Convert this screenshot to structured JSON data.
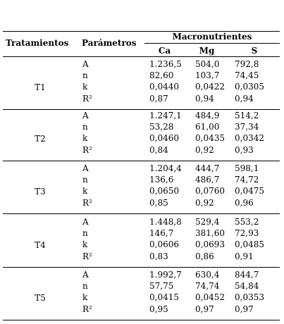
{
  "header": {
    "treatment": "Tratamientos",
    "parameter": "Parámetros",
    "group": "Macronutrientes",
    "subcolumns": [
      "Ca",
      "Mg",
      "S"
    ]
  },
  "groups": [
    {
      "treatment": "T1",
      "rows": [
        {
          "parameter": "A",
          "values": [
            "1.236,5",
            "504,0",
            "792,8"
          ]
        },
        {
          "parameter": "n",
          "values": [
            "82,60",
            "103,7",
            "74,45"
          ]
        },
        {
          "parameter": "k",
          "values": [
            "0,0440",
            "0,0422",
            "0,0305"
          ]
        },
        {
          "parameter": "R²",
          "values": [
            "0,87",
            "0,94",
            "0,94"
          ]
        }
      ]
    },
    {
      "treatment": "T2",
      "rows": [
        {
          "parameter": "A",
          "values": [
            "1.247,1",
            "484,9",
            "514,2"
          ]
        },
        {
          "parameter": "n",
          "values": [
            "53,28",
            "61,00",
            "37,34"
          ]
        },
        {
          "parameter": "k",
          "values": [
            "0,0460",
            "0,0435",
            "0,0342"
          ]
        },
        {
          "parameter": "R²",
          "values": [
            "0,84",
            "0,92",
            "0,93"
          ]
        }
      ]
    },
    {
      "treatment": "T3",
      "rows": [
        {
          "parameter": "A",
          "values": [
            "1.204,4",
            "444,7",
            "598,1"
          ]
        },
        {
          "parameter": "n",
          "values": [
            "136,6",
            "486,7",
            "74,72"
          ]
        },
        {
          "parameter": "k",
          "values": [
            "0,0650",
            "0,0760",
            "0,0475"
          ]
        },
        {
          "parameter": "R²",
          "values": [
            "0,85",
            "0,92",
            "0,96"
          ]
        }
      ]
    },
    {
      "treatment": "T4",
      "rows": [
        {
          "parameter": "A",
          "values": [
            "1.448,8",
            "529,4",
            "553,2"
          ]
        },
        {
          "parameter": "n",
          "values": [
            "146,7",
            "381,60",
            "72,93"
          ]
        },
        {
          "parameter": "k",
          "values": [
            "0,0606",
            "0,0693",
            "0,0485"
          ]
        },
        {
          "parameter": "R²",
          "values": [
            "0,83",
            "0,86",
            "0,91"
          ]
        }
      ]
    },
    {
      "treatment": "T5",
      "rows": [
        {
          "parameter": "A",
          "values": [
            "1.992,7",
            "630,4",
            "844,7"
          ]
        },
        {
          "parameter": "n",
          "values": [
            "57,75",
            "74,74",
            "54,84"
          ]
        },
        {
          "parameter": "k",
          "values": [
            "0,0415",
            "0,0452",
            "0,0353"
          ]
        },
        {
          "parameter": "R²",
          "values": [
            "0,95",
            "0,97",
            "0,97"
          ]
        }
      ]
    }
  ]
}
